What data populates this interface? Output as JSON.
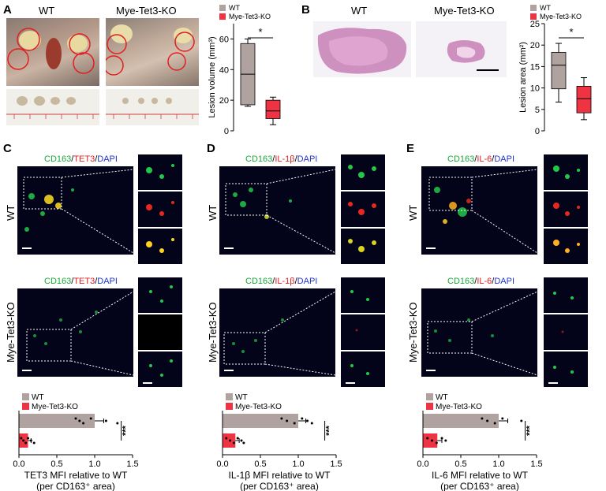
{
  "panels": {
    "A": {
      "label": "A",
      "col_wt": "WT",
      "col_ko": "Mye-Tet3-KO"
    },
    "B": {
      "label": "B",
      "col_wt": "WT",
      "col_ko": "Mye-Tet3-KO"
    },
    "C": {
      "label": "C",
      "stain_a": "CD163",
      "stain_b": "TET3",
      "stain_c": "DAPI",
      "row_wt": "WT",
      "row_ko": "Mye-Tet3-KO"
    },
    "D": {
      "label": "D",
      "stain_a": "CD163",
      "stain_b": "IL-1β",
      "stain_c": "DAPI",
      "row_wt": "WT",
      "row_ko": "Mye-Tet3-KO"
    },
    "E": {
      "label": "E",
      "stain_a": "CD163",
      "stain_b": "IL-6",
      "stain_c": "DAPI",
      "row_wt": "WT",
      "row_ko": "Mye-Tet3-KO"
    }
  },
  "colors": {
    "wt": "#b0a39f",
    "ko": "#ee3442",
    "green": "#22c84a",
    "red": "#e8281e",
    "blue": "#2233cc"
  },
  "chart_data": [
    {
      "id": "A-box",
      "type": "box",
      "ylabel": "Lesion volume (mm³)",
      "ylim": [
        0,
        70
      ],
      "yticks": [
        0,
        20,
        40,
        60
      ],
      "legend": [
        "WT",
        "Mye-Tet3-KO"
      ],
      "legend_position": "top",
      "significance": "*",
      "series": [
        {
          "name": "WT",
          "min": 16,
          "q1": 17,
          "median": 37,
          "q3": 57,
          "max": 60
        },
        {
          "name": "Mye-Tet3-KO",
          "min": 4,
          "q1": 8,
          "median": 13,
          "q3": 20,
          "max": 22
        }
      ]
    },
    {
      "id": "B-box",
      "type": "box",
      "ylabel": "Lesion area (mm²)",
      "ylim": [
        0,
        25
      ],
      "yticks": [
        0,
        5,
        10,
        15,
        20,
        25
      ],
      "legend": [
        "WT",
        "Mye-Tet3-KO"
      ],
      "legend_position": "top",
      "significance": "*",
      "series": [
        {
          "name": "WT",
          "min": 6.7,
          "q1": 9.8,
          "median": 15.3,
          "q3": 18.3,
          "max": 20.4
        },
        {
          "name": "Mye-Tet3-KO",
          "min": 2.6,
          "q1": 4.2,
          "median": 7.5,
          "q3": 10.4,
          "max": 12.4
        }
      ]
    },
    {
      "id": "C-bar",
      "type": "bar",
      "orientation": "horizontal",
      "xlabel": "TET3 MFI relative to WT",
      "xlabel2": "(per CD163⁺ area)",
      "xlim": [
        0,
        1.5
      ],
      "xticks": [
        "0.0",
        "0.5",
        "1.0",
        "1.5"
      ],
      "legend": [
        "WT",
        "Mye-Tet3-KO"
      ],
      "significance": "***",
      "series": [
        {
          "name": "WT",
          "value": 1.0,
          "error": 0.12,
          "points": [
            0.75,
            0.8,
            0.85,
            0.95,
            1.15,
            1.3
          ]
        },
        {
          "name": "Mye-Tet3-KO",
          "value": 0.12,
          "error": 0.04,
          "points": [
            0.03,
            0.06,
            0.09,
            0.12,
            0.16,
            0.2
          ]
        }
      ]
    },
    {
      "id": "D-bar",
      "type": "bar",
      "orientation": "horizontal",
      "xlabel": "IL-1β MFI relative to WT",
      "xlabel2": "(per CD163⁺ area)",
      "xlim": [
        0,
        1.5
      ],
      "xticks": [
        "0.0",
        "0.5",
        "1.0",
        "1.5"
      ],
      "legend": [
        "WT",
        "Mye-Tet3-KO"
      ],
      "significance": "***",
      "series": [
        {
          "name": "WT",
          "value": 1.0,
          "error": 0.1,
          "points": [
            0.78,
            0.85,
            0.95,
            1.05,
            1.12,
            1.18
          ]
        },
        {
          "name": "Mye-Tet3-KO",
          "value": 0.17,
          "error": 0.05,
          "points": [
            0.05,
            0.1,
            0.15,
            0.2,
            0.25,
            0.28
          ]
        }
      ]
    },
    {
      "id": "E-bar",
      "type": "bar",
      "orientation": "horizontal",
      "xlabel": "IL-6 MFI relative to WT",
      "xlabel2": "(per CD163⁺ area)",
      "xlim": [
        0,
        1.5
      ],
      "xticks": [
        "0.0",
        "0.5",
        "1.0",
        "1.5"
      ],
      "legend": [
        "WT",
        "Mye-Tet3-KO"
      ],
      "significance": "***",
      "series": [
        {
          "name": "WT",
          "value": 1.0,
          "error": 0.12,
          "points": [
            0.78,
            0.85,
            0.95,
            1.05,
            1.3
          ]
        },
        {
          "name": "Mye-Tet3-KO",
          "value": 0.19,
          "error": 0.06,
          "points": [
            0.06,
            0.12,
            0.18,
            0.25,
            0.3
          ]
        }
      ]
    }
  ]
}
